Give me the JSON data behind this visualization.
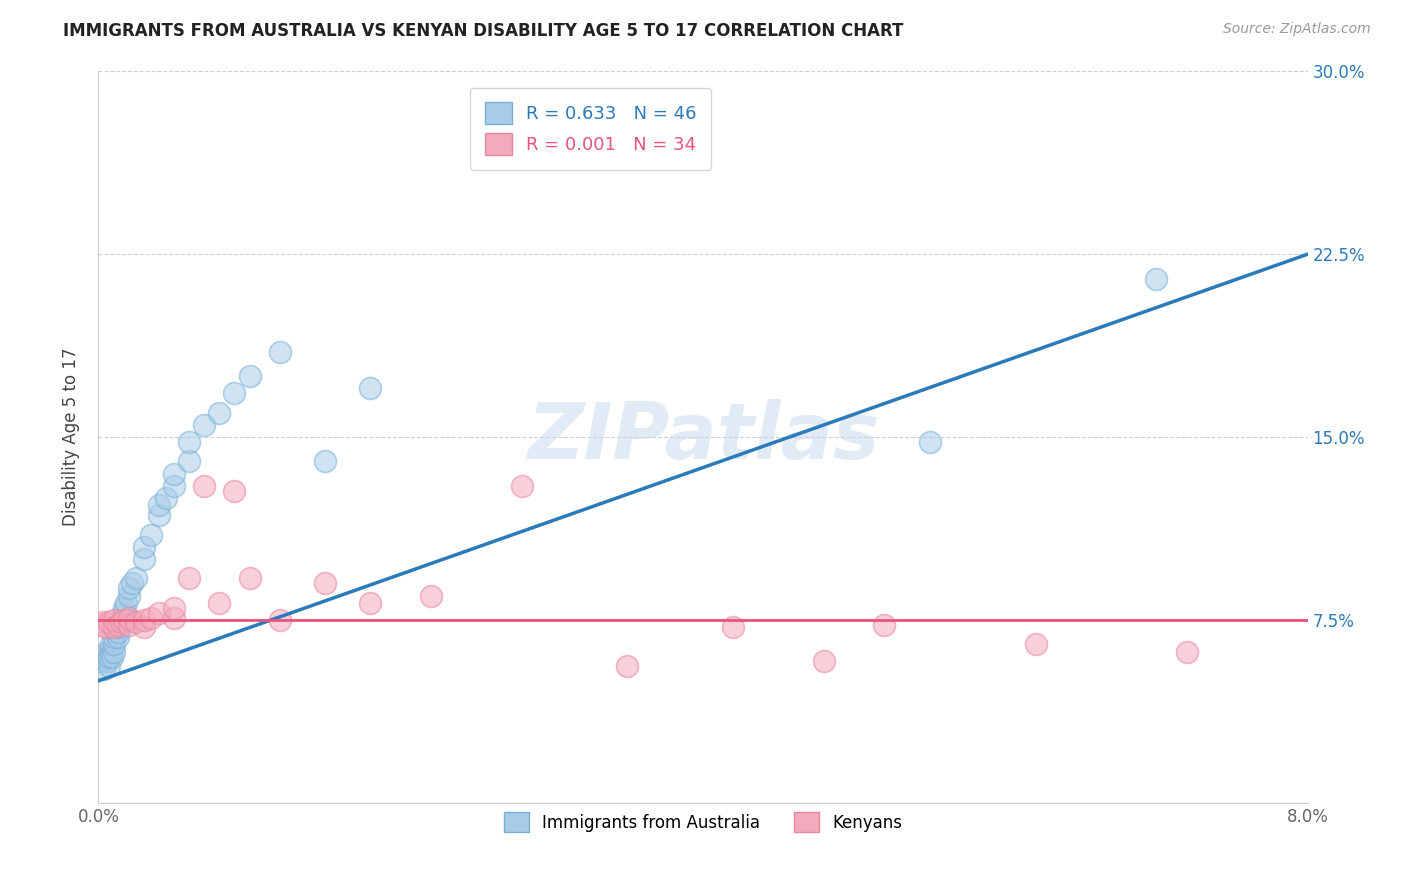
{
  "title": "IMMIGRANTS FROM AUSTRALIA VS KENYAN DISABILITY AGE 5 TO 17 CORRELATION CHART",
  "source": "Source: ZipAtlas.com",
  "ylabel_label": "Disability Age 5 to 17",
  "xlim": [
    0.0,
    0.08
  ],
  "ylim": [
    0.0,
    0.3
  ],
  "legend_blue_R": "R = 0.633",
  "legend_blue_N": "N = 46",
  "legend_pink_R": "R = 0.001",
  "legend_pink_N": "N = 34",
  "legend_label_blue": "Immigrants from Australia",
  "legend_label_pink": "Kenyans",
  "blue_color": "#a8cce8",
  "pink_color": "#f4aabc",
  "blue_edge_color": "#7ab0d4",
  "pink_edge_color": "#e885a0",
  "blue_line_color": "#2b7bba",
  "pink_line_color": "#e8547a",
  "watermark": "ZIPatlas",
  "blue_scatter_x": [
    0.0002,
    0.0003,
    0.0004,
    0.0005,
    0.0006,
    0.0006,
    0.0007,
    0.0007,
    0.0008,
    0.0008,
    0.0009,
    0.001,
    0.001,
    0.001,
    0.0012,
    0.0013,
    0.0013,
    0.0014,
    0.0015,
    0.0016,
    0.0017,
    0.0018,
    0.0019,
    0.002,
    0.002,
    0.0022,
    0.0025,
    0.003,
    0.003,
    0.0035,
    0.004,
    0.004,
    0.0045,
    0.005,
    0.005,
    0.006,
    0.006,
    0.007,
    0.008,
    0.009,
    0.01,
    0.012,
    0.015,
    0.018,
    0.055,
    0.07
  ],
  "blue_scatter_y": [
    0.058,
    0.06,
    0.055,
    0.06,
    0.058,
    0.062,
    0.056,
    0.06,
    0.062,
    0.065,
    0.06,
    0.062,
    0.065,
    0.068,
    0.072,
    0.068,
    0.07,
    0.072,
    0.075,
    0.078,
    0.08,
    0.082,
    0.075,
    0.085,
    0.088,
    0.09,
    0.092,
    0.1,
    0.105,
    0.11,
    0.118,
    0.122,
    0.125,
    0.13,
    0.135,
    0.14,
    0.148,
    0.155,
    0.16,
    0.168,
    0.175,
    0.185,
    0.14,
    0.17,
    0.148,
    0.215
  ],
  "pink_scatter_x": [
    0.0002,
    0.0003,
    0.0005,
    0.0007,
    0.001,
    0.001,
    0.0013,
    0.0015,
    0.0017,
    0.002,
    0.002,
    0.0025,
    0.003,
    0.003,
    0.0035,
    0.004,
    0.005,
    0.005,
    0.006,
    0.007,
    0.008,
    0.009,
    0.01,
    0.012,
    0.015,
    0.018,
    0.022,
    0.028,
    0.035,
    0.042,
    0.048,
    0.052,
    0.062,
    0.072
  ],
  "pink_scatter_y": [
    0.073,
    0.074,
    0.072,
    0.074,
    0.072,
    0.075,
    0.073,
    0.074,
    0.075,
    0.073,
    0.076,
    0.074,
    0.072,
    0.075,
    0.076,
    0.078,
    0.076,
    0.08,
    0.092,
    0.13,
    0.082,
    0.128,
    0.092,
    0.075,
    0.09,
    0.082,
    0.085,
    0.13,
    0.056,
    0.072,
    0.058,
    0.073,
    0.065,
    0.062
  ],
  "blue_line_x": [
    0.0,
    0.08
  ],
  "blue_line_y": [
    0.05,
    0.225
  ],
  "pink_line_x": [
    0.0,
    0.08
  ],
  "pink_line_y": [
    0.075,
    0.075
  ],
  "background_color": "#ffffff",
  "grid_color": "#d0d0d0",
  "ytick_labels": [
    "",
    "7.5%",
    "15.0%",
    "22.5%",
    "30.0%"
  ],
  "ytick_values": [
    0.0,
    0.075,
    0.15,
    0.225,
    0.3
  ]
}
